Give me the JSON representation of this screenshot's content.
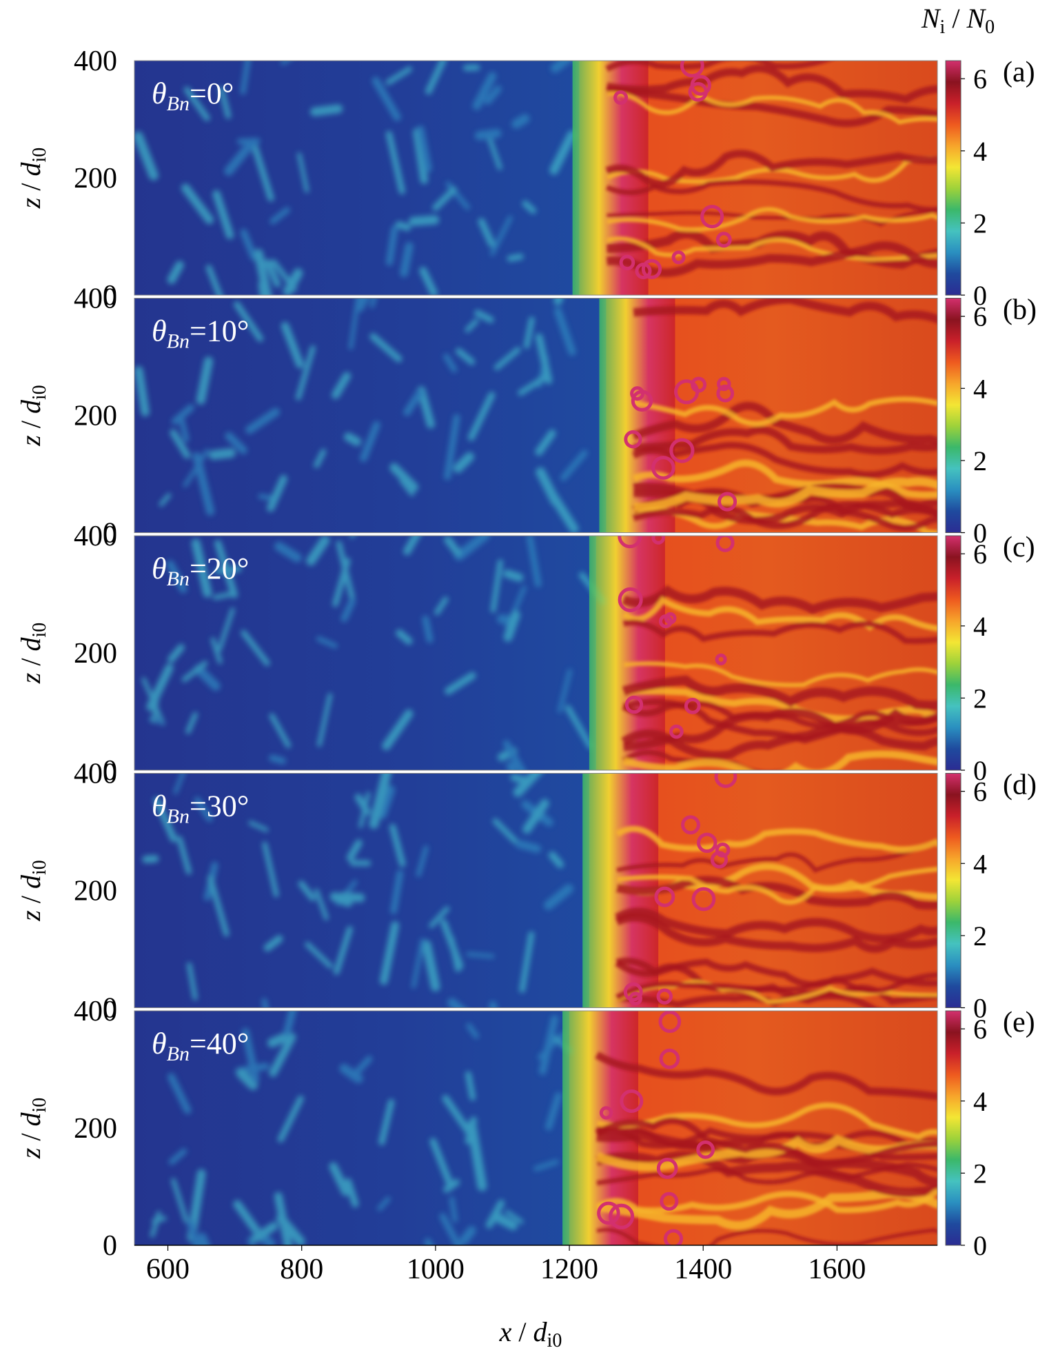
{
  "chart_data": {
    "type": "heatmap",
    "xlabel": {
      "var": "x",
      "sub_base": "d",
      "sub": "i0"
    },
    "ylabel": {
      "var": "z",
      "sub_base": "d",
      "sub": "i0"
    },
    "colorbar_label": {
      "num": "N",
      "num_sub": "i",
      "den": "N",
      "den_sub": "0"
    },
    "xlim": [
      550,
      1750
    ],
    "ylim": [
      0,
      400
    ],
    "x_ticks": [
      600,
      800,
      1000,
      1200,
      1400,
      1600
    ],
    "y_ticks": [
      0,
      200,
      400
    ],
    "colorbar_range": [
      0,
      6.5
    ],
    "colorbar_ticks": [
      0,
      2,
      4,
      6
    ],
    "colormap": [
      "#2b2c93",
      "#1f4a9e",
      "#2a8fc0",
      "#45c2bf",
      "#3bb86a",
      "#9ed23a",
      "#f3e634",
      "#f7a52b",
      "#ee5a1f",
      "#c9202a",
      "#8a1320",
      "#d3306e"
    ],
    "panels": [
      {
        "label": "(a)",
        "theta_prefix": "θ",
        "theta_sub": "Bn",
        "theta_value": "=0°",
        "shock_x": 1215
      },
      {
        "label": "(b)",
        "theta_prefix": "θ",
        "theta_sub": "Bn",
        "theta_value": "=10°",
        "shock_x": 1255
      },
      {
        "label": "(c)",
        "theta_prefix": "θ",
        "theta_sub": "Bn",
        "theta_value": "=20°",
        "shock_x": 1240
      },
      {
        "label": "(d)",
        "theta_prefix": "θ",
        "theta_sub": "Bn",
        "theta_value": "=30°",
        "shock_x": 1230
      },
      {
        "label": "(e)",
        "theta_prefix": "θ",
        "theta_sub": "Bn",
        "theta_value": "=40°",
        "shock_x": 1200
      }
    ]
  }
}
